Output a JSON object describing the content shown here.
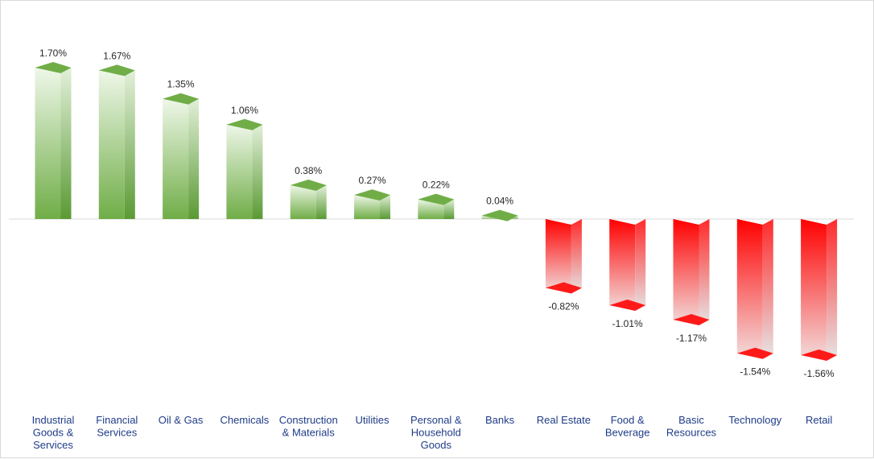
{
  "chart_data": {
    "type": "bar",
    "title": "",
    "xlabel": "",
    "ylabel": "",
    "categories": [
      "Industrial Goods & Services",
      "Financial Services",
      "Oil & Gas",
      "Chemicals",
      "Construction & Materials",
      "Utilities",
      "Personal & Household Goods",
      "Banks",
      "Real Estate",
      "Food & Beverage",
      "Basic Resources",
      "Technology",
      "Retail"
    ],
    "category_lines": [
      [
        "Industrial",
        "Goods &",
        "Services"
      ],
      [
        "Financial",
        "Services"
      ],
      [
        "Oil & Gas"
      ],
      [
        "Chemicals"
      ],
      [
        "Construction",
        "& Materials"
      ],
      [
        "Utilities"
      ],
      [
        "Personal &",
        "Household",
        "Goods"
      ],
      [
        "Banks"
      ],
      [
        "Real Estate"
      ],
      [
        "Food &",
        "Beverage"
      ],
      [
        "Basic",
        "Resources"
      ],
      [
        "Technology"
      ],
      [
        "Retail"
      ]
    ],
    "values": [
      1.7,
      1.67,
      1.35,
      1.06,
      0.38,
      0.27,
      0.22,
      0.04,
      -0.82,
      -1.01,
      -1.17,
      -1.54,
      -1.56
    ],
    "data_labels": [
      "1.70%",
      "1.67%",
      "1.35%",
      "1.06%",
      "0.38%",
      "0.27%",
      "0.22%",
      "0.04%",
      "-0.82%",
      "-1.01%",
      "-1.17%",
      "-1.54%",
      "-1.56%"
    ],
    "ylim": [
      -1.56,
      1.7
    ],
    "grid": false,
    "legend": "none",
    "colors": {
      "positive": "#70ad47",
      "positive_light": "#e6f2de",
      "negative": "#ff0000",
      "negative_light": "#e8e8e8",
      "axis": "#d9d9d9",
      "category_text": "#1f3c88"
    }
  }
}
